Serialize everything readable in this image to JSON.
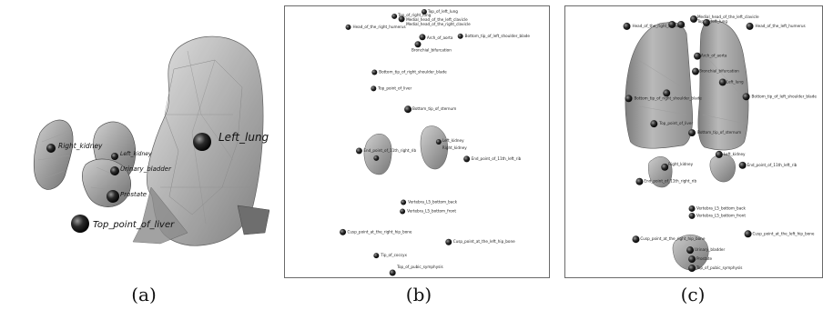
{
  "captions": {
    "a": "(a)",
    "b": "(b)",
    "c": "(c)"
  },
  "panel_a": {
    "labels": {
      "left_lung": "Left_lung",
      "right_kidney": "Right_kidney",
      "left_kidney": "Left_kidney",
      "urinary_bladder": "Urinary_bladder",
      "prostate": "Prostate",
      "top_point_of_liver": "Top_point_of_liver"
    }
  },
  "panel_b": {
    "labels": {
      "top_left_lung": "Top_of_left_lung",
      "top_right_lung": "Top_of_right_lung",
      "clavicle_left": "Medial_head_of_the_left_clavicle",
      "clavicle_right": "Medial_head_of_the_right_clavicle",
      "humerus_right": "Head_of_the_right_humerus",
      "arch_aorta": "Arch_of_aorta",
      "bronchial_bifurcation": "Bronchial_bifurcation",
      "shoulder_blade_left": "Bottom_tip_of_left_shoulder_blade",
      "shoulder_blade_right": "Bottom_tip_of_right_shoulder_blade",
      "top_liver": "Top_point_of_liver",
      "sternum": "Bottom_tip_of_sternum",
      "left_kidney": "Left_kidney",
      "right_kidney": "Right_kidney",
      "rib_left": "End_point_of_11th_left_rib",
      "rib_right": "End_point_of_11th_right_rib",
      "vert_back": "Vertebra_L5_bottom_back",
      "vert_front": "Vertebra_L5_bottom_front",
      "hip_right": "Cusp_point_at_the_right_hip_bone",
      "hip_left": "Cusp_point_at_the_left_hip_bone",
      "coccyx": "Tip_of_coccyx",
      "pubic": "Top_of_pubic_symphysis"
    }
  },
  "panel_c": {
    "labels": {
      "humerus_right": "Head_of_the_right_humerus",
      "clavicle_left": "Medial_head_of_the_left_clavicle",
      "top_left_lung": "Top_of_left_lung",
      "humerus_left": "Head_of_the_left_humerus",
      "arch_aorta": "Arch_of_aorta",
      "bronchial_bifurcation": "Bronchial_bifurcation",
      "left_lung": "Left_lung",
      "shoulder_blade_right": "Bottom_tip_of_right_shoulder_blade",
      "shoulder_blade_left": "Bottom_tip_of_left_shoulder_blade",
      "top_liver": "Top_point_of_liver",
      "sternum": "Bottom_tip_of_sternum",
      "left_kidney": "Left_kidney",
      "right_kidney": "Right_kidney",
      "rib_left": "End_point_of_11th_left_rib",
      "rib_right": "End_point_of_11th_right_rib",
      "vert_back": "Vertebra_L5_bottom_back",
      "vert_front": "Vertebra_L5_bottom_front",
      "hip_right": "Cusp_point_at_the_right_hip_bone",
      "hip_left": "Cusp_point_at_the_left_hip_bone",
      "bladder": "Urinary_bladder",
      "prostate": "Prostate",
      "pubic": "Top_of_pubic_symphysis"
    }
  }
}
